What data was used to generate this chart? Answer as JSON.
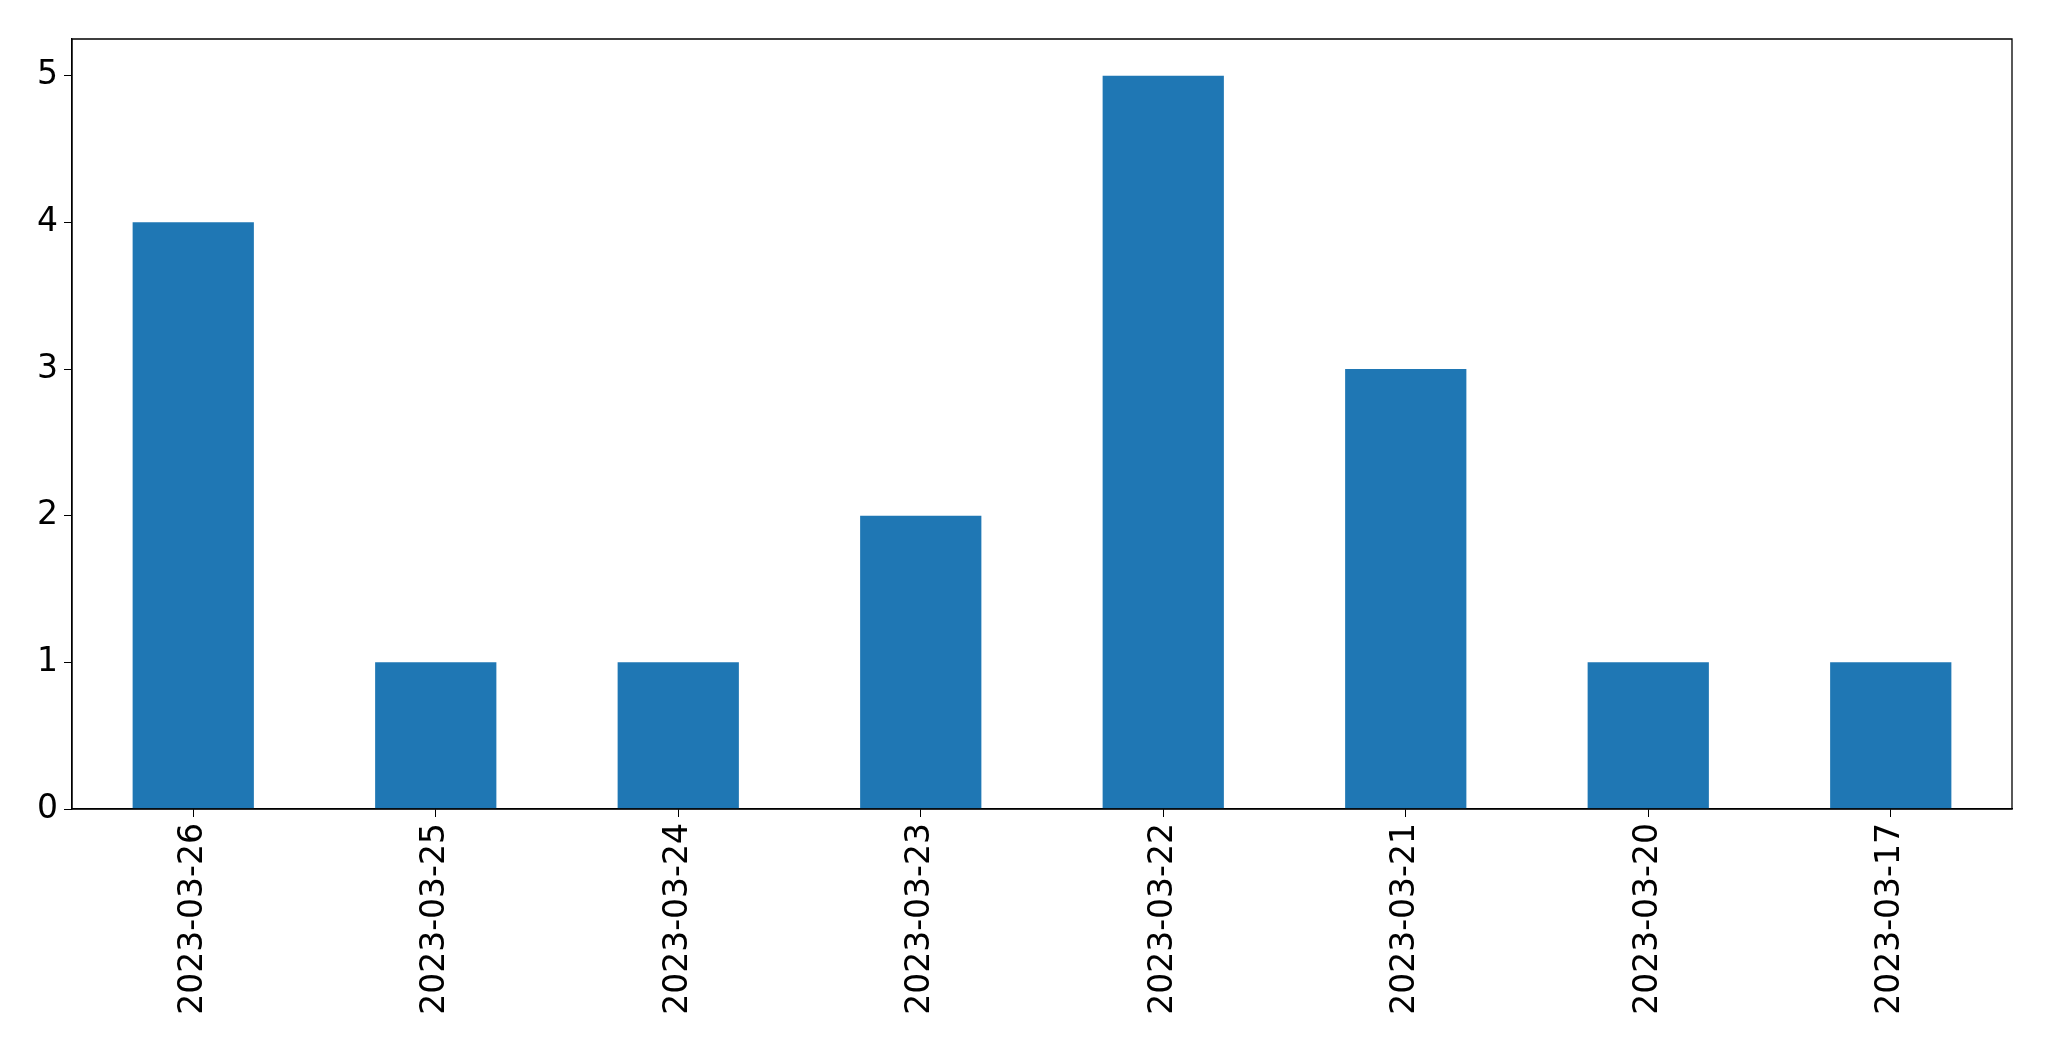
{
  "chart_data": {
    "type": "bar",
    "categories": [
      "2023-03-26",
      "2023-03-25",
      "2023-03-24",
      "2023-03-23",
      "2023-03-22",
      "2023-03-21",
      "2023-03-20",
      "2023-03-17"
    ],
    "values": [
      4,
      1,
      1,
      2,
      5,
      3,
      1,
      1
    ],
    "color": "#1f77b4",
    "ylim": [
      0,
      5.25
    ],
    "yticks": [
      0,
      1,
      2,
      3,
      4,
      5
    ],
    "grid": false,
    "legend": false
  }
}
